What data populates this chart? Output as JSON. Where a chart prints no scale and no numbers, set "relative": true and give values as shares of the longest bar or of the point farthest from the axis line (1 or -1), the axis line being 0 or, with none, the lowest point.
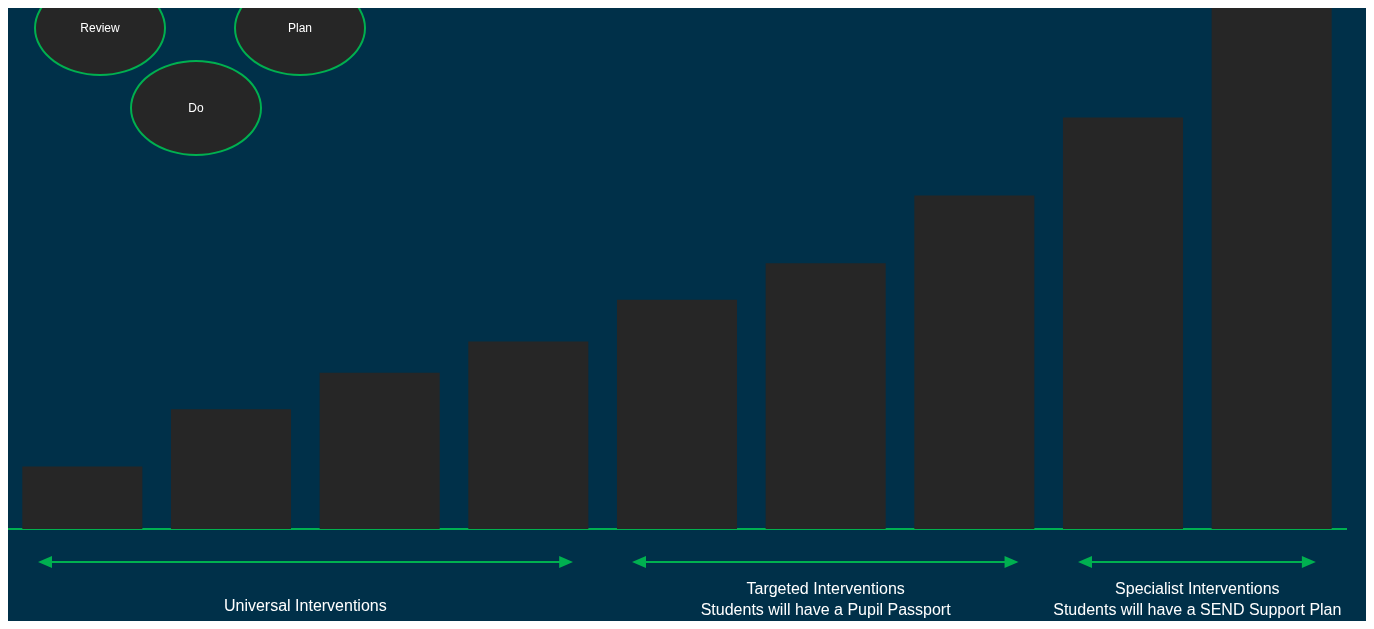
{
  "chart_data": {
    "type": "bar",
    "relative": true,
    "categories": [
      null,
      null,
      null,
      null,
      null,
      null,
      null,
      null,
      null
    ],
    "values": [
      0.12,
      0.23,
      0.3,
      0.36,
      0.44,
      0.51,
      0.64,
      0.79,
      1.0
    ],
    "color": "#262626",
    "annotations": [
      "Review",
      "Plan",
      "Do",
      "Universal Interventions",
      "Targeted Interventions\nStudents will have a Pupil Passport",
      "Specialist Interventions\nStudents will have a SEND Support Plan"
    ]
  }
}
